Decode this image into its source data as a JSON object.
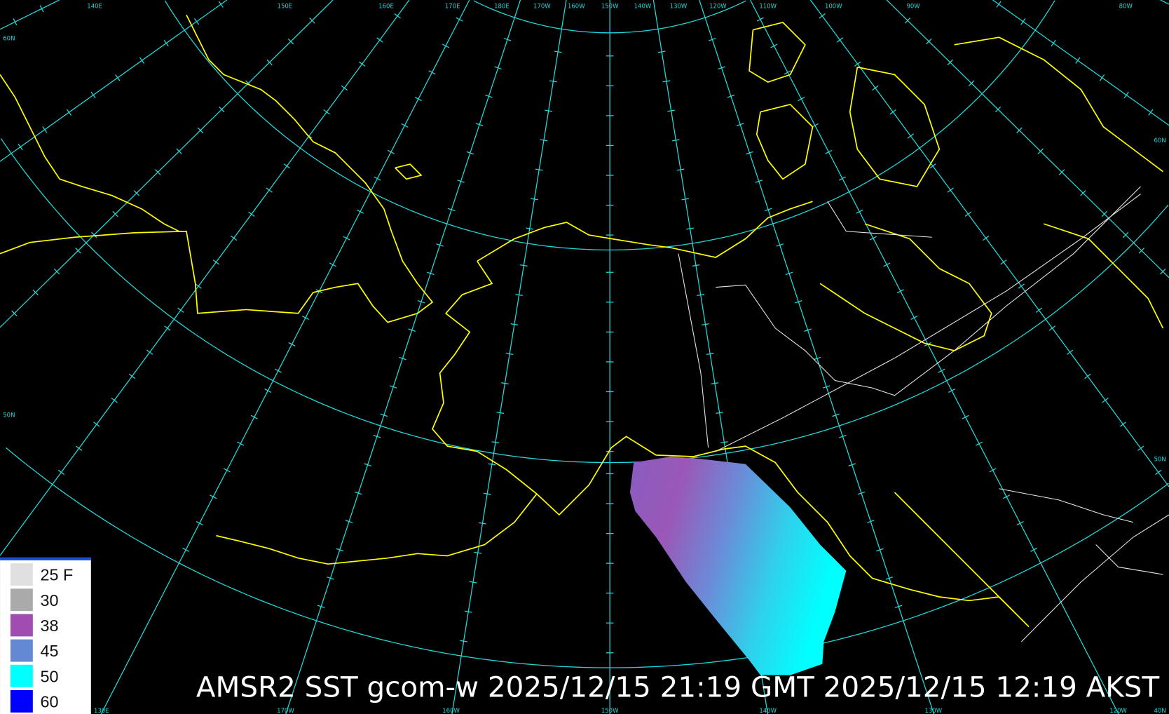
{
  "map": {
    "title": "AMSR2 SST gcom-w 2025/12/15 21:19 GMT 2025/12/15 12:19 AKST",
    "background_color": "#000000",
    "graticule_color": "#22d8d8",
    "coastline_color": "#ffff00",
    "border_color": "#e8e8e8",
    "top_lon_labels": [
      "140E",
      "150E",
      "160E",
      "170E",
      "180E",
      "170W",
      "160W",
      "150W",
      "140W",
      "130W",
      "120W",
      "110W",
      "100W",
      "90W",
      "80W"
    ],
    "bottom_lon_labels": [
      "130E",
      "170W",
      "160W",
      "150W",
      "140W",
      "130W",
      "120W"
    ],
    "lat_labels": {
      "left_top": "60N",
      "left_mid": "50N",
      "right_top": "60N",
      "right_mid": "50N",
      "bottom_right": "40N"
    }
  },
  "legend": {
    "unit": "F",
    "items": [
      {
        "label": "25 F",
        "color": "#e0e0e0"
      },
      {
        "label": "30",
        "color": "#aaaaaa"
      },
      {
        "label": "38",
        "color": "#a04cb0"
      },
      {
        "label": "45",
        "color": "#6488d4"
      },
      {
        "label": "50",
        "color": "#00ffff"
      },
      {
        "label": "60",
        "color": "#0000ff"
      }
    ]
  }
}
